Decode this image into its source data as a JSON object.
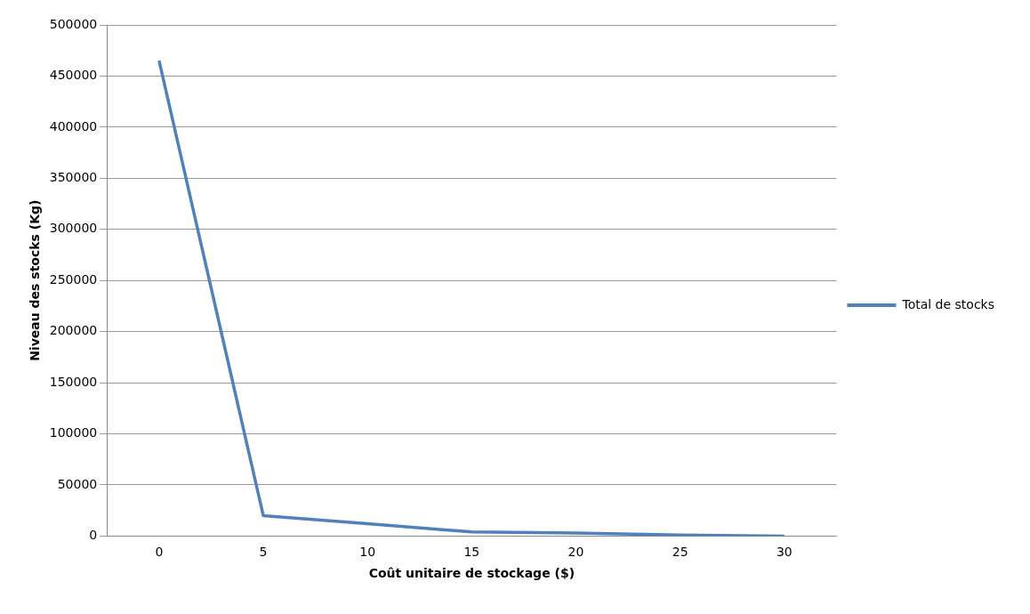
{
  "chart_data": {
    "type": "line",
    "xlabel": "Coût unitaire de stockage ($)",
    "ylabel": "Niveau des stocks (Kg)",
    "categories": [
      "0",
      "5",
      "10",
      "15",
      "20",
      "25",
      "30"
    ],
    "series": [
      {
        "name": "Total de stocks",
        "color": "#4f81bd",
        "values": [
          465000,
          20000,
          12000,
          4000,
          3000,
          1000,
          0
        ]
      }
    ],
    "ylim": [
      0,
      500000
    ],
    "yticks": [
      0,
      50000,
      100000,
      150000,
      200000,
      250000,
      300000,
      350000,
      400000,
      450000,
      500000
    ],
    "grid": "y",
    "legend": "right",
    "marker": "none",
    "line_style": "solid"
  }
}
